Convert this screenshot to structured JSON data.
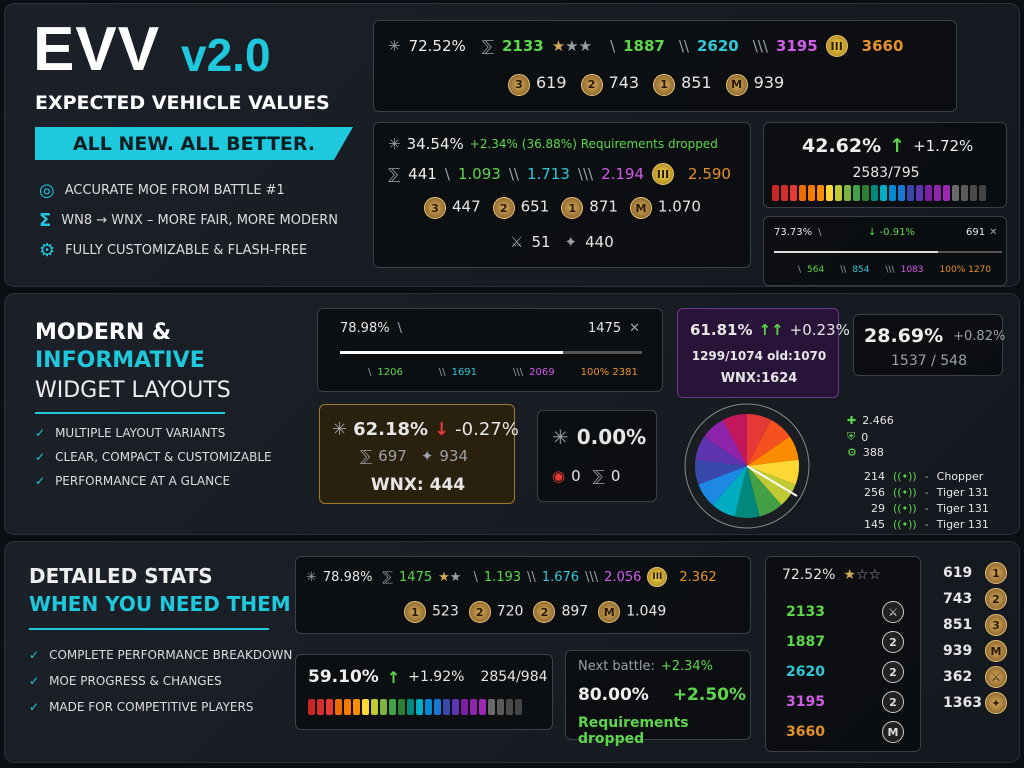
{
  "hero": {
    "title": "EVV",
    "version": "v2.0",
    "subtitle": "EXPECTED VEHICLE VALUES",
    "banner": "ALL NEW. ALL BETTER.",
    "features": [
      {
        "icon": "target-icon",
        "text": "ACCURATE MOE FROM BATTLE #1"
      },
      {
        "icon": "sigma-icon",
        "text": "WN8 → WNX – MORE FAIR, MORE MODERN"
      },
      {
        "icon": "gear-icon",
        "text": "FULLY CUSTOMIZABLE & FLASH-FREE"
      }
    ]
  },
  "w1": {
    "pct": "72.52%",
    "wnx": "2133",
    "m1": "1887",
    "m2": "2620",
    "m3": "3195",
    "m4": "3660",
    "medals": [
      "619",
      "743",
      "851",
      "939"
    ],
    "medal_labels": [
      "3",
      "2",
      "1",
      "M"
    ],
    "medal_m3": "III"
  },
  "w2": {
    "pct": "34.54%",
    "delta": "+2.34% (36.88%) Requirements dropped",
    "wnx": "441",
    "m1": "1.093",
    "m2": "1.713",
    "m3": "2.194",
    "m4": "2.590",
    "medals": [
      "447",
      "651",
      "871",
      "1.070"
    ],
    "b1": "51",
    "b2": "440"
  },
  "w3": {
    "pct": "42.62%",
    "delta": "+1.72%",
    "ratio": "2583/795",
    "bar_colors": [
      "#c62828",
      "#d32f2f",
      "#e53935",
      "#ef6c00",
      "#f57c00",
      "#fb8c00",
      "#fdd835",
      "#c0ca33",
      "#7cb342",
      "#43a047",
      "#2e7d32",
      "#00897b",
      "#00acc1",
      "#0288d1",
      "#1976d2",
      "#3949ab",
      "#5e35b1",
      "#7b1fa2",
      "#8e24aa",
      "#9c27b0",
      "#6a6a6a",
      "#5a5a5a",
      "#4a4a4a",
      "#444"
    ]
  },
  "w4": {
    "pct": "73.73%",
    "delta": "↓ -0.91%",
    "val": "691",
    "t1": "564",
    "t2": "854",
    "t3": "1083",
    "t4": "100% 1270"
  },
  "mod": {
    "line1": "MODERN &",
    "line2": "INFORMATIVE",
    "line3": "WIDGET LAYOUTS",
    "bullets": [
      "MULTIPLE LAYOUT VARIANTS",
      "CLEAR, COMPACT & CUSTOMIZABLE",
      "PERFORMANCE AT A GLANCE"
    ]
  },
  "w5": {
    "pct": "78.98%",
    "val": "1475",
    "t1": "1206",
    "t2": "1691",
    "t3": "2069",
    "t4": "100% 2381",
    "fill": 0.74
  },
  "w6": {
    "pct": "61.81%",
    "delta": "+0.23%",
    "ratio": "1299/1074 old:1070",
    "wnx": "WNX:1624"
  },
  "w7": {
    "pct": "28.69%",
    "delta": "+0.82%",
    "ratio": "1537 / 548"
  },
  "w8": {
    "pct": "62.18%",
    "delta": "-0.27%",
    "a": "697",
    "b": "934",
    "wnx": "WNX: 444"
  },
  "w9": {
    "pct": "0.00%",
    "a": "0",
    "b": "0"
  },
  "pie": {
    "v1": "2.466",
    "v2": "0",
    "v3": "388",
    "colors": [
      "#e53935",
      "#f4511e",
      "#fb8c00",
      "#fdd835",
      "#c0ca33",
      "#43a047",
      "#00897b",
      "#00acc1",
      "#1e88e5",
      "#3949ab",
      "#5e35b1",
      "#8e24aa",
      "#c2185b"
    ]
  },
  "players": [
    {
      "n": "214",
      "name": "Chopper"
    },
    {
      "n": "256",
      "name": "Tiger 131"
    },
    {
      "n": "29",
      "name": "Tiger 131"
    },
    {
      "n": "145",
      "name": "Tiger 131"
    }
  ],
  "det": {
    "line1": "DETAILED STATS",
    "line2": "WHEN YOU NEED THEM",
    "bullets": [
      "COMPLETE PERFORMANCE BREAKDOWN",
      "MOE PROGRESS & CHANGES",
      "MADE FOR COMPETITIVE PLAYERS"
    ]
  },
  "w10": {
    "pct": "78.98%",
    "wnx": "1475",
    "m1": "1.193",
    "m2": "1.676",
    "m3": "2.056",
    "m4": "2.362",
    "medals": [
      "523",
      "720",
      "897",
      "1.049"
    ]
  },
  "w11": {
    "pct": "59.10%",
    "delta": "+1.92%",
    "ratio": "2854/984"
  },
  "w12": {
    "next_label": "Next battle:",
    "next": "+2.34%",
    "pct": "80.00%",
    "delta": "+2.50%",
    "req": "Requirements dropped"
  },
  "w13": {
    "pct": "72.52%",
    "vals": [
      "2133",
      "1887",
      "2620",
      "3195",
      "3660"
    ]
  },
  "side": {
    "vals": [
      "619",
      "743",
      "851",
      "939",
      "362",
      "1363"
    ],
    "icons": [
      "1",
      "2",
      "3",
      "M",
      "⚔",
      "✦"
    ]
  }
}
